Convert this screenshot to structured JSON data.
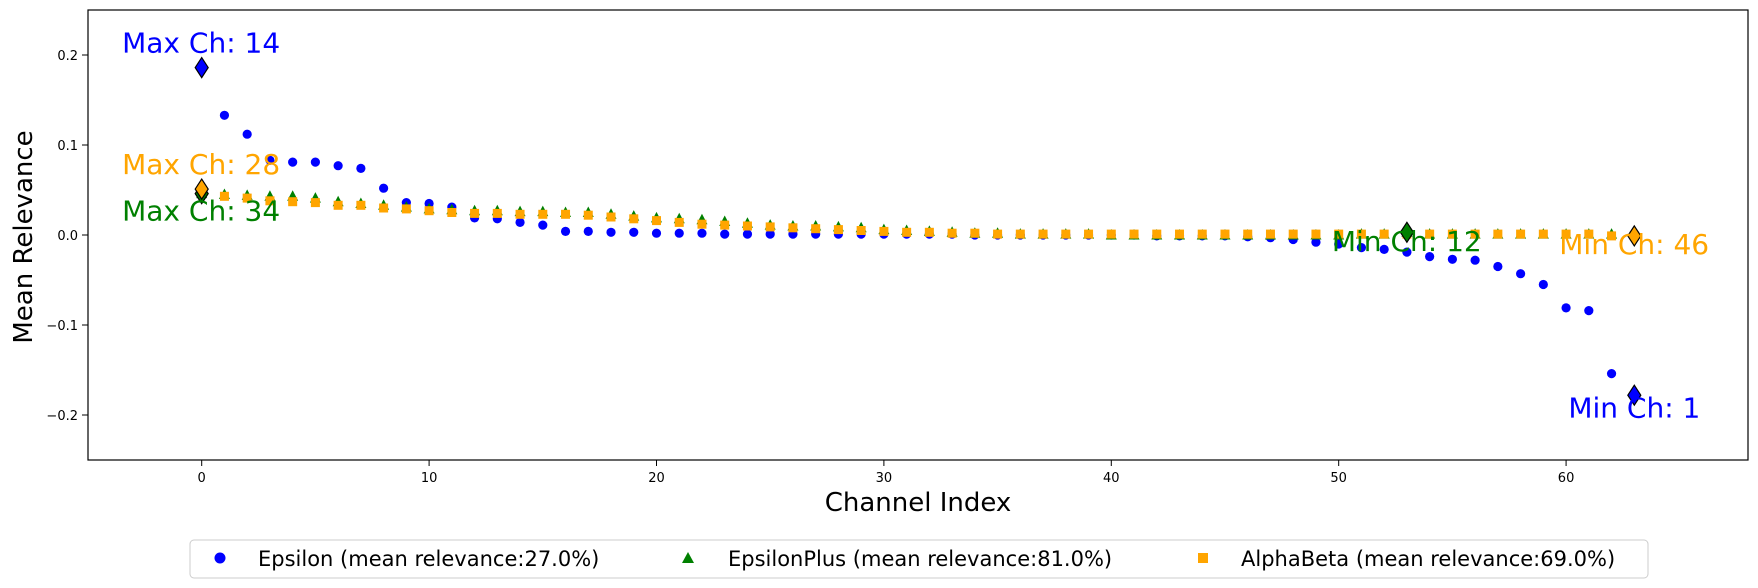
{
  "chart_data": {
    "type": "scatter",
    "title": "",
    "xlabel": "Channel Index",
    "ylabel": "Mean Relevance",
    "xlim": [
      -5,
      68
    ],
    "ylim": [
      -0.25,
      0.25
    ],
    "xticks": [
      0,
      10,
      20,
      30,
      40,
      50,
      60
    ],
    "yticks": [
      -0.2,
      -0.1,
      0.0,
      0.1,
      0.2
    ],
    "xtick_labels": [
      "0",
      "10",
      "20",
      "30",
      "40",
      "50",
      "60"
    ],
    "ytick_labels": [
      "−0.2",
      "−0.1",
      "0.0",
      "0.1",
      "0.2"
    ],
    "grid": false,
    "legend_position": "bottom-center, outside plot",
    "series": [
      {
        "name": "Epsilon (mean relevance:27.0%)",
        "color": "#0000ff",
        "marker": "circle",
        "x": [
          0,
          1,
          2,
          3,
          4,
          5,
          6,
          7,
          8,
          9,
          10,
          11,
          12,
          13,
          14,
          15,
          16,
          17,
          18,
          19,
          20,
          21,
          22,
          23,
          24,
          25,
          26,
          27,
          28,
          29,
          30,
          31,
          32,
          33,
          34,
          35,
          36,
          37,
          38,
          39,
          40,
          41,
          42,
          43,
          44,
          45,
          46,
          47,
          48,
          49,
          50,
          51,
          52,
          53,
          54,
          55,
          56,
          57,
          58,
          59,
          60,
          61,
          62,
          63
        ],
        "y": [
          0.186,
          0.133,
          0.112,
          0.083,
          0.081,
          0.081,
          0.077,
          0.074,
          0.052,
          0.036,
          0.035,
          0.031,
          0.019,
          0.018,
          0.014,
          0.011,
          0.004,
          0.004,
          0.003,
          0.003,
          0.002,
          0.002,
          0.002,
          0.001,
          0.001,
          0.001,
          0.001,
          0.001,
          0.001,
          0.001,
          0.001,
          0.001,
          0.001,
          0.001,
          0.0,
          0.0,
          0.0,
          0.0,
          0.0,
          0.0,
          0.0,
          0.0,
          -0.001,
          -0.001,
          -0.001,
          -0.001,
          -0.002,
          -0.003,
          -0.005,
          -0.008,
          -0.01,
          -0.014,
          -0.016,
          -0.019,
          -0.024,
          -0.027,
          -0.028,
          -0.035,
          -0.043,
          -0.055,
          -0.081,
          -0.084,
          -0.154,
          -0.178
        ]
      },
      {
        "name": "EpsilonPlus (mean relevance:81.0%)",
        "color": "#008000",
        "marker": "triangle",
        "x": [
          0,
          1,
          2,
          3,
          4,
          5,
          6,
          7,
          8,
          9,
          10,
          11,
          12,
          13,
          14,
          15,
          16,
          17,
          18,
          19,
          20,
          21,
          22,
          23,
          24,
          25,
          26,
          27,
          28,
          29,
          30,
          31,
          32,
          33,
          34,
          35,
          36,
          37,
          38,
          39,
          40,
          41,
          42,
          43,
          44,
          45,
          46,
          47,
          48,
          49,
          50,
          51,
          52,
          53,
          54,
          55,
          56,
          57,
          58,
          59,
          60,
          61,
          62,
          63
        ],
        "y": [
          0.046,
          0.045,
          0.044,
          0.043,
          0.043,
          0.041,
          0.037,
          0.035,
          0.033,
          0.031,
          0.029,
          0.028,
          0.027,
          0.027,
          0.026,
          0.026,
          0.025,
          0.025,
          0.023,
          0.021,
          0.019,
          0.018,
          0.017,
          0.015,
          0.013,
          0.011,
          0.01,
          0.01,
          0.009,
          0.008,
          0.006,
          0.005,
          0.004,
          0.003,
          0.002,
          0.002,
          0.001,
          0.001,
          0.001,
          0.001,
          0.0,
          0.0,
          0.0,
          0.0,
          0.0,
          0.0,
          0.0,
          0.0,
          0.0,
          0.0,
          0.0,
          0.001,
          0.001,
          0.003,
          0.001,
          0.001,
          0.001,
          0.001,
          0.001,
          0.001,
          0.001,
          0.001,
          0.001,
          0.001
        ]
      },
      {
        "name": "AlphaBeta (mean relevance:69.0%)",
        "color": "#ffa500",
        "marker": "square",
        "x": [
          0,
          1,
          2,
          3,
          4,
          5,
          6,
          7,
          8,
          9,
          10,
          11,
          12,
          13,
          14,
          15,
          16,
          17,
          18,
          19,
          20,
          21,
          22,
          23,
          24,
          25,
          26,
          27,
          28,
          29,
          30,
          31,
          32,
          33,
          34,
          35,
          36,
          37,
          38,
          39,
          40,
          41,
          42,
          43,
          44,
          45,
          46,
          47,
          48,
          49,
          50,
          51,
          52,
          53,
          54,
          55,
          56,
          57,
          58,
          59,
          60,
          61,
          62,
          63
        ],
        "y": [
          0.051,
          0.043,
          0.041,
          0.038,
          0.037,
          0.036,
          0.033,
          0.033,
          0.03,
          0.029,
          0.027,
          0.025,
          0.024,
          0.024,
          0.023,
          0.023,
          0.023,
          0.022,
          0.02,
          0.018,
          0.016,
          0.014,
          0.012,
          0.011,
          0.01,
          0.009,
          0.008,
          0.007,
          0.006,
          0.005,
          0.004,
          0.003,
          0.003,
          0.002,
          0.002,
          0.001,
          0.001,
          0.001,
          0.001,
          0.001,
          0.001,
          0.001,
          0.001,
          0.001,
          0.001,
          0.001,
          0.001,
          0.001,
          0.001,
          0.001,
          0.001,
          0.001,
          0.001,
          0.001,
          0.001,
          0.001,
          0.001,
          0.001,
          0.001,
          0.001,
          0.001,
          0.001,
          -0.001,
          -0.001
        ]
      }
    ],
    "extremes": [
      {
        "x": 0,
        "y": 0.186,
        "color": "#0000ff"
      },
      {
        "x": 63,
        "y": -0.178,
        "color": "#0000ff"
      },
      {
        "x": 0,
        "y": 0.046,
        "color": "#008000"
      },
      {
        "x": 53,
        "y": 0.003,
        "color": "#008000"
      },
      {
        "x": 0,
        "y": 0.051,
        "color": "#ffa500"
      },
      {
        "x": 63,
        "y": -0.001,
        "color": "#ffa500"
      }
    ],
    "annotations": [
      {
        "text": "Max Ch: 14",
        "x": -3.5,
        "y": 0.203,
        "color": "#0000ff"
      },
      {
        "text": "Max Ch: 28",
        "x": -3.5,
        "y": 0.068,
        "color": "#ffa500"
      },
      {
        "text": "Max Ch: 34",
        "x": -3.5,
        "y": 0.016,
        "color": "#008000"
      },
      {
        "text": "Min Ch: 12",
        "x": 49.7,
        "y": -0.018,
        "color": "#008000"
      },
      {
        "text": "Min Ch: 46",
        "x": 59.7,
        "y": -0.021,
        "color": "#ffa500"
      },
      {
        "text": "Min Ch: 1",
        "x": 60.1,
        "y": -0.203,
        "color": "#0000ff"
      }
    ]
  },
  "legend": {
    "items": [
      {
        "label": "Epsilon (mean relevance:27.0%)",
        "color": "#0000ff",
        "marker": "circle"
      },
      {
        "label": "EpsilonPlus (mean relevance:81.0%)",
        "color": "#008000",
        "marker": "triangle"
      },
      {
        "label": "AlphaBeta (mean relevance:69.0%)",
        "color": "#ffa500",
        "marker": "square"
      }
    ]
  }
}
